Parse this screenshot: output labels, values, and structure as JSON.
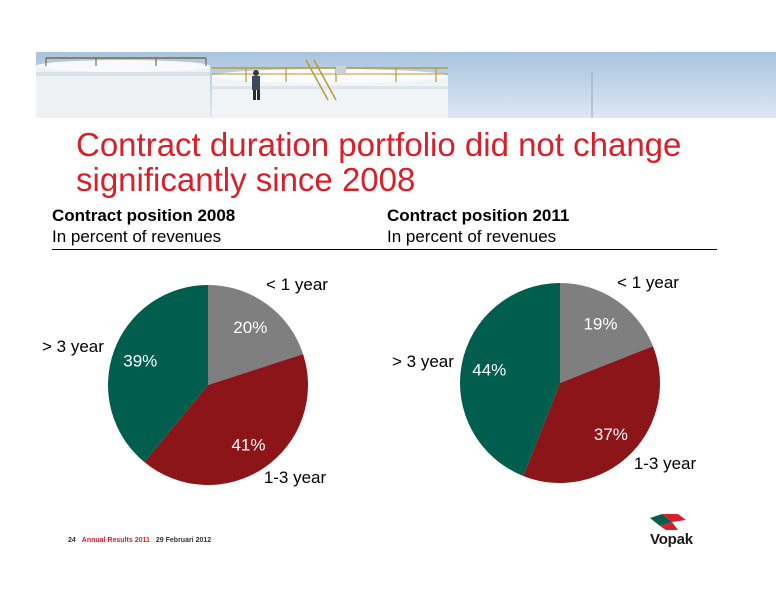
{
  "slide": {
    "title_line1": "Contract duration portfolio did not change",
    "title_line2": "significantly since 2008",
    "footer_page": "24",
    "footer_report": "Annual Results 2011",
    "footer_date": "29 Februari 2012",
    "logo_text": "Vopak"
  },
  "colors": {
    "lt1": "#7f7f7f",
    "y13": "#8b1519",
    "gt3": "#005e4e",
    "title": "#d8202a"
  },
  "chart_data": [
    {
      "type": "pie",
      "title": "Contract position 2008",
      "subtitle": "In percent of revenues",
      "slices": [
        {
          "label": "< 1 year",
          "value": 20,
          "value_label": "20%",
          "color": "#7f7f7f"
        },
        {
          "label": "1-3 year",
          "value": 41,
          "value_label": "41%",
          "color": "#8b1519"
        },
        {
          "label": "> 3 year",
          "value": 39,
          "value_label": "39%",
          "color": "#005e4e"
        }
      ]
    },
    {
      "type": "pie",
      "title": "Contract position 2011",
      "subtitle": "In percent of revenues",
      "slices": [
        {
          "label": "< 1 year",
          "value": 19,
          "value_label": "19%",
          "color": "#7f7f7f"
        },
        {
          "label": "1-3 year",
          "value": 37,
          "value_label": "37%",
          "color": "#8b1519"
        },
        {
          "label": "> 3 year",
          "value": 44,
          "value_label": "44%",
          "color": "#005e4e"
        }
      ]
    }
  ]
}
